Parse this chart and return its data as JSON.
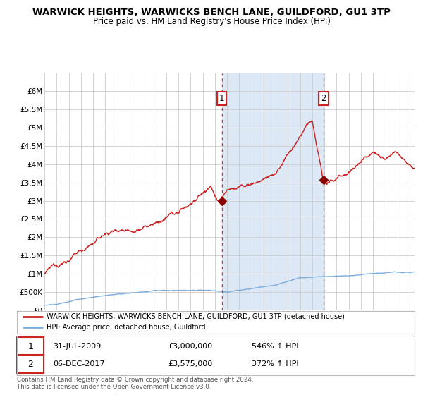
{
  "title": "WARWICK HEIGHTS, WARWICKS BENCH LANE, GUILDFORD, GU1 3TP",
  "subtitle": "Price paid vs. HM Land Registry's House Price Index (HPI)",
  "xlim": [
    1995.0,
    2025.4
  ],
  "ylim": [
    0,
    6500000
  ],
  "yticks": [
    0,
    500000,
    1000000,
    1500000,
    2000000,
    2500000,
    3000000,
    3500000,
    4000000,
    4500000,
    5000000,
    5500000,
    6000000
  ],
  "ytick_labels": [
    "£0",
    "£500K",
    "£1M",
    "£1.5M",
    "£2M",
    "£2.5M",
    "£3M",
    "£3.5M",
    "£4M",
    "£4.5M",
    "£5M",
    "£5.5M",
    "£6M"
  ],
  "sale1_x": 2009.58,
  "sale1_y": 3000000,
  "sale2_x": 2017.93,
  "sale2_y": 3575000,
  "shade_x1": 2009.58,
  "shade_x2": 2017.93,
  "red_line_color": "#cc2222",
  "blue_line_color": "#7aaddc",
  "shade_color": "#dce8f5",
  "grid_color": "#cccccc",
  "background_color": "#ffffff",
  "legend_label1": "WARWICK HEIGHTS, WARWICKS BENCH LANE, GUILDFORD, GU1 3TP (detached house)",
  "legend_label2": "HPI: Average price, detached house, Guildford",
  "footnote": "Contains HM Land Registry data © Crown copyright and database right 2024.\nThis data is licensed under the Open Government Licence v3.0.",
  "sale1_date": "31-JUL-2009",
  "sale1_price": "£3,000,000",
  "sale1_hpi": "546% ↑ HPI",
  "sale2_date": "06-DEC-2017",
  "sale2_price": "£3,575,000",
  "sale2_hpi": "372% ↑ HPI"
}
